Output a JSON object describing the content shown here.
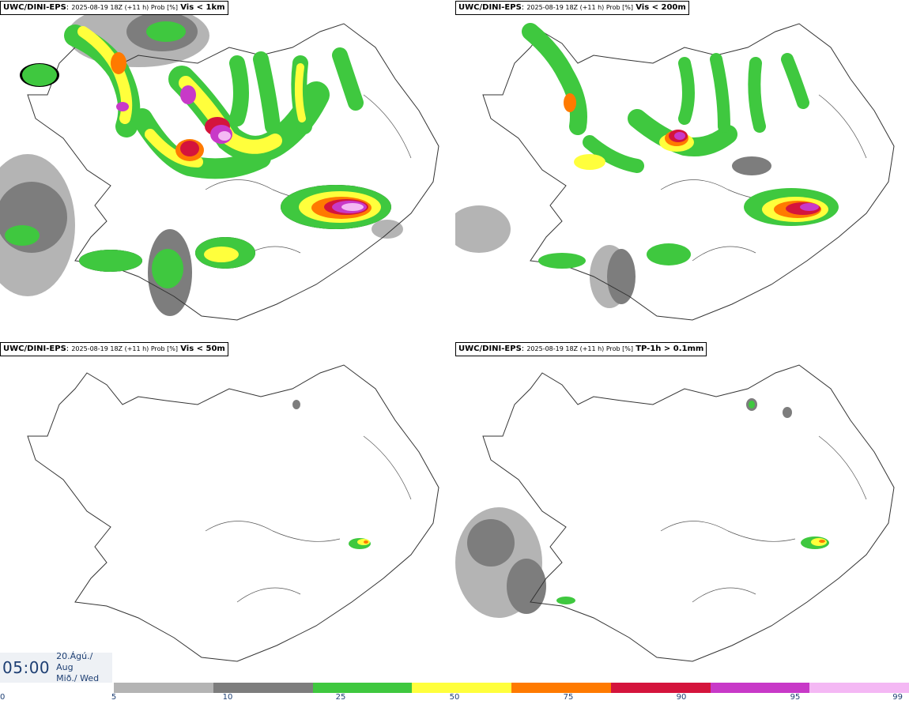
{
  "panels": [
    {
      "model": "UWC/DINI-EPS",
      "run": "2025-08-19 18Z (+11 h) Prob [%]",
      "field": "Vis < 1km"
    },
    {
      "model": "UWC/DINI-EPS",
      "run": "2025-08-19 18Z (+11 h) Prob [%]",
      "field": "Vis < 200m"
    },
    {
      "model": "UWC/DINI-EPS",
      "run": "2025-08-19 18Z (+11 h) Prob [%]",
      "field": "Vis < 50m"
    },
    {
      "model": "UWC/DINI-EPS",
      "run": "2025-08-19 18Z (+11 h) Prob [%]",
      "field": "TP-1h > 0.1mm"
    }
  ],
  "valid_time": {
    "clock": "05:00",
    "date": "20.Ágú./ Aug",
    "weekday": "Mið./ Wed"
  },
  "legend": {
    "ticks": [
      "0",
      "5",
      "10",
      "25",
      "50",
      "75",
      "90",
      "95",
      "99"
    ],
    "colors": [
      "#b4b4b4",
      "#7d7d7d",
      "#3fc83f",
      "#ffff3c",
      "#ff7a00",
      "#d4143c",
      "#c839c8",
      "#f4b8f4"
    ]
  },
  "colors": {
    "text_accent": "#1e3f73"
  }
}
